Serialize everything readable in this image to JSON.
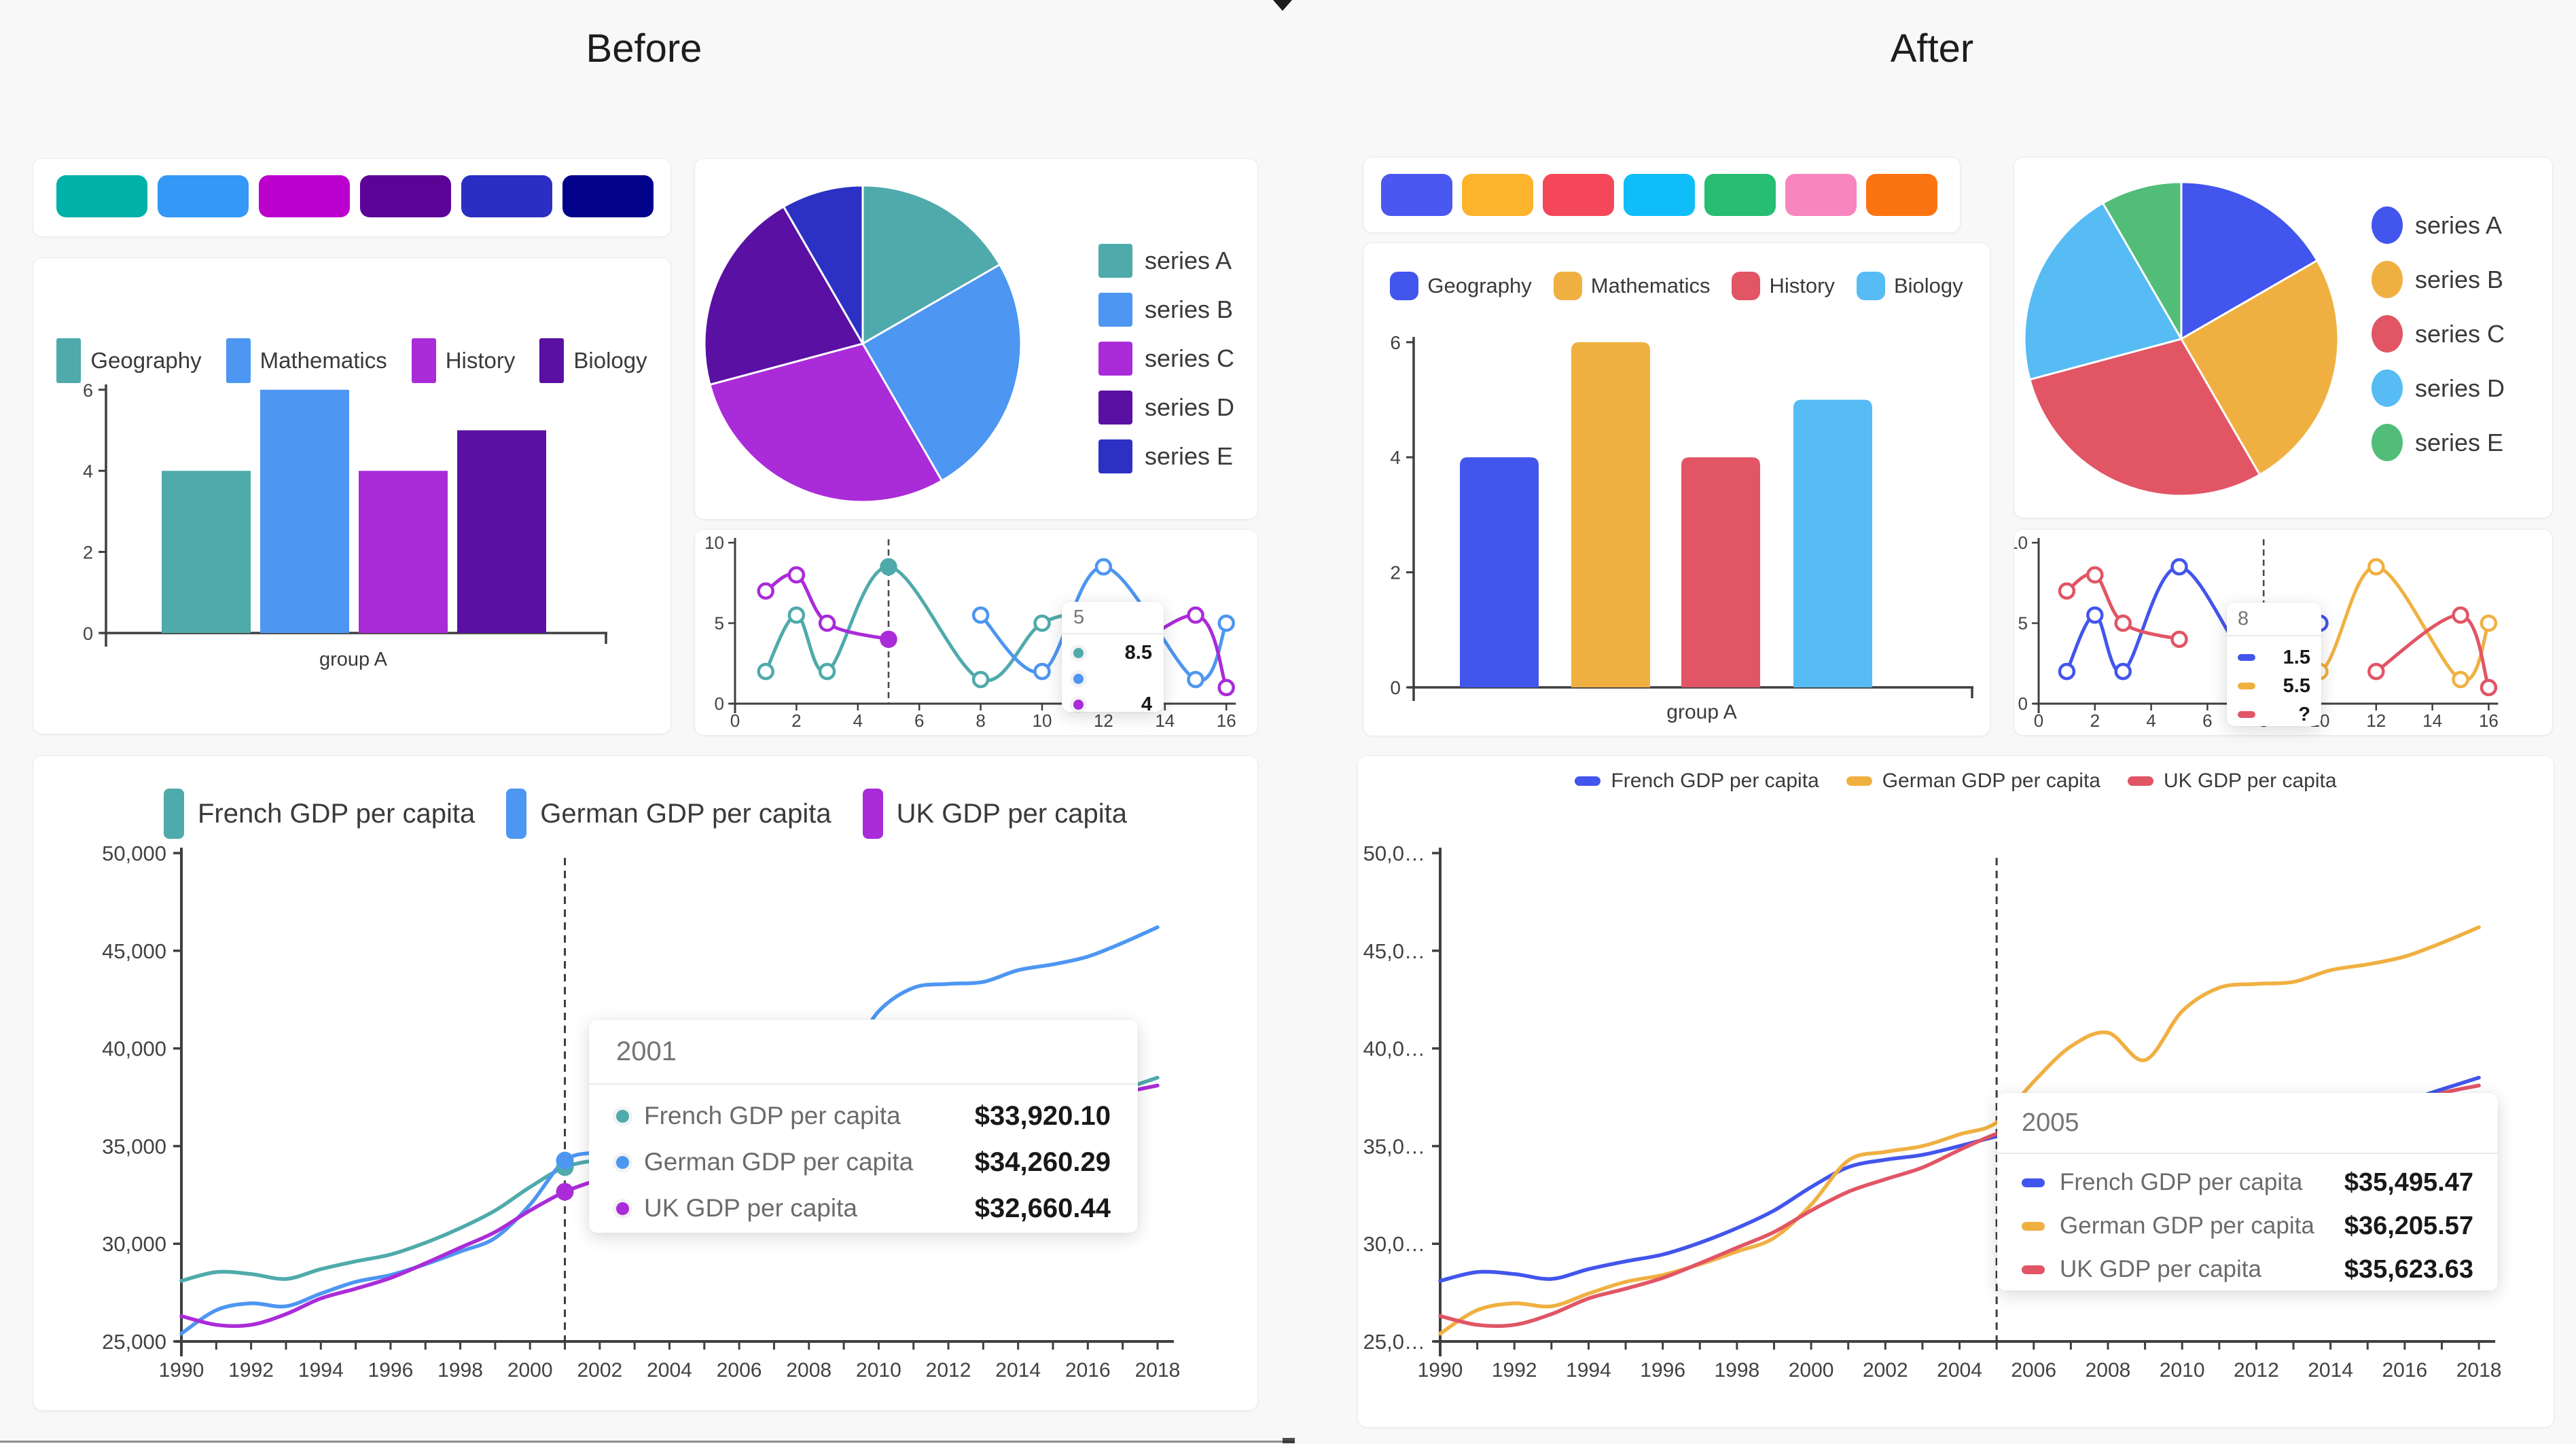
{
  "titles": {
    "before": "Before",
    "after": "After"
  },
  "palettes": {
    "before": [
      "#00B1A8",
      "#3498F7",
      "#BC00CE",
      "#5B0397",
      "#2A2EC2",
      "#01018A"
    ],
    "after": [
      "#4A57F0",
      "#FCB42D",
      "#F4485A",
      "#0FBEF8",
      "#27BD72",
      "#F786BE",
      "#FB7411"
    ]
  },
  "theme_colors": {
    "before": [
      "#4FAAAB",
      "#4D96F2",
      "#AA2BD8",
      "#5A10A2",
      "#2C31C4"
    ],
    "after": [
      "#4255EC",
      "#F0B041",
      "#E15565",
      "#56BCF3",
      "#52BD78"
    ]
  },
  "chart_data": [
    {
      "id": "bar",
      "type": "bar",
      "categories": [
        "group A"
      ],
      "series": [
        {
          "name": "Geography",
          "values": [
            4
          ]
        },
        {
          "name": "Mathematics",
          "values": [
            6
          ]
        },
        {
          "name": "History",
          "values": [
            4
          ]
        },
        {
          "name": "Biology",
          "values": [
            5
          ]
        }
      ],
      "y_ticks": [
        0,
        2,
        4,
        6
      ],
      "ylim": [
        0,
        6
      ],
      "xlabel": "group A"
    },
    {
      "id": "pie",
      "type": "pie",
      "labels": [
        "series A",
        "series B",
        "series C",
        "series D",
        "series E"
      ],
      "values": [
        4,
        6,
        7,
        5,
        2
      ]
    },
    {
      "id": "line",
      "type": "line",
      "x_ticks": [
        0,
        2,
        4,
        6,
        8,
        10,
        12,
        14,
        16
      ],
      "y_ticks": [
        0,
        5,
        10
      ],
      "xlim": [
        0,
        16
      ],
      "ylim": [
        0,
        10
      ],
      "series": [
        {
          "points": [
            [
              1,
              2
            ],
            [
              2,
              5.5
            ],
            [
              3,
              2
            ],
            [
              5,
              8.5
            ],
            [
              8,
              1.5
            ],
            [
              10,
              5
            ]
          ]
        },
        {
          "points": [
            [
              8,
              5.5
            ],
            [
              10,
              2
            ],
            [
              12,
              8.5
            ],
            [
              15,
              1.5
            ],
            [
              16,
              5
            ]
          ]
        },
        {
          "points": [
            [
              1,
              7
            ],
            [
              2,
              8
            ],
            [
              3,
              5
            ],
            [
              5,
              4
            ]
          ],
          "points_after_gap": [
            [
              12,
              2
            ],
            [
              15,
              5.5
            ],
            [
              16,
              1
            ]
          ]
        }
      ],
      "before": {
        "cursor_x": 5,
        "hidden_tail": [
          12,
          5.8
        ],
        "highlights": [
          [
            0,
            5,
            8.5
          ],
          [
            2,
            5,
            4
          ]
        ],
        "tooltip": {
          "header": "5",
          "values": [
            "8.5",
            "",
            "4"
          ]
        }
      },
      "after": {
        "cursor_x": 8,
        "tooltip": {
          "header": "8",
          "values": [
            "1.5",
            "5.5",
            "?"
          ]
        }
      }
    },
    {
      "id": "gdp",
      "type": "line",
      "legend": [
        "French GDP per capita",
        "German GDP per capita",
        "UK GDP per capita"
      ],
      "year_start": 1990,
      "x_tick_labels": [
        "1990",
        "1992",
        "1994",
        "1996",
        "1998",
        "2000",
        "2002",
        "2004",
        "2006",
        "2008",
        "2010",
        "2012",
        "2014",
        "2016",
        "2018"
      ],
      "ylim": [
        25000,
        50000
      ],
      "y_tick_labels_before": [
        "50,000",
        "45,000",
        "40,000",
        "35,000",
        "30,000",
        "25,000"
      ],
      "y_tick_labels_after": [
        "50,0…",
        "45,0…",
        "40,0…",
        "35,0…",
        "30,0…",
        "25,0…"
      ],
      "series": [
        {
          "name": "French GDP per capita",
          "values": [
            28100,
            28550,
            28450,
            28200,
            28700,
            29100,
            29450,
            30050,
            30800,
            31700,
            32900,
            33920,
            34300,
            34550,
            35000,
            35495,
            35900,
            36300,
            36300,
            35300,
            35800,
            36200,
            36200,
            36300,
            36600,
            36900,
            37300,
            37900,
            38500
          ]
        },
        {
          "name": "German GDP per capita",
          "values": [
            25400,
            26600,
            26950,
            26800,
            27450,
            28050,
            28400,
            28950,
            29600,
            30300,
            32000,
            34260,
            34700,
            35000,
            35600,
            36206,
            38300,
            40100,
            40800,
            39400,
            41900,
            43100,
            43300,
            43400,
            44000,
            44300,
            44700,
            45400,
            46200
          ]
        },
        {
          "name": "UK GDP per capita",
          "values": [
            26300,
            25850,
            25850,
            26400,
            27200,
            27700,
            28250,
            29000,
            29800,
            30600,
            31700,
            32660,
            33300,
            33900,
            34800,
            35624,
            36100,
            36500,
            36300,
            35000,
            35300,
            35600,
            35800,
            36100,
            36600,
            36500,
            37000,
            37700,
            38100
          ]
        }
      ],
      "before": {
        "cursor_year": 2001,
        "tooltip": {
          "header": "2001",
          "values": [
            "$33,920.10",
            "$34,260.29",
            "$32,660.44"
          ]
        }
      },
      "after": {
        "cursor_year": 2005,
        "tooltip": {
          "header": "2005",
          "values": [
            "$35,495.47",
            "$36,205.57",
            "$35,623.63"
          ]
        }
      }
    }
  ]
}
